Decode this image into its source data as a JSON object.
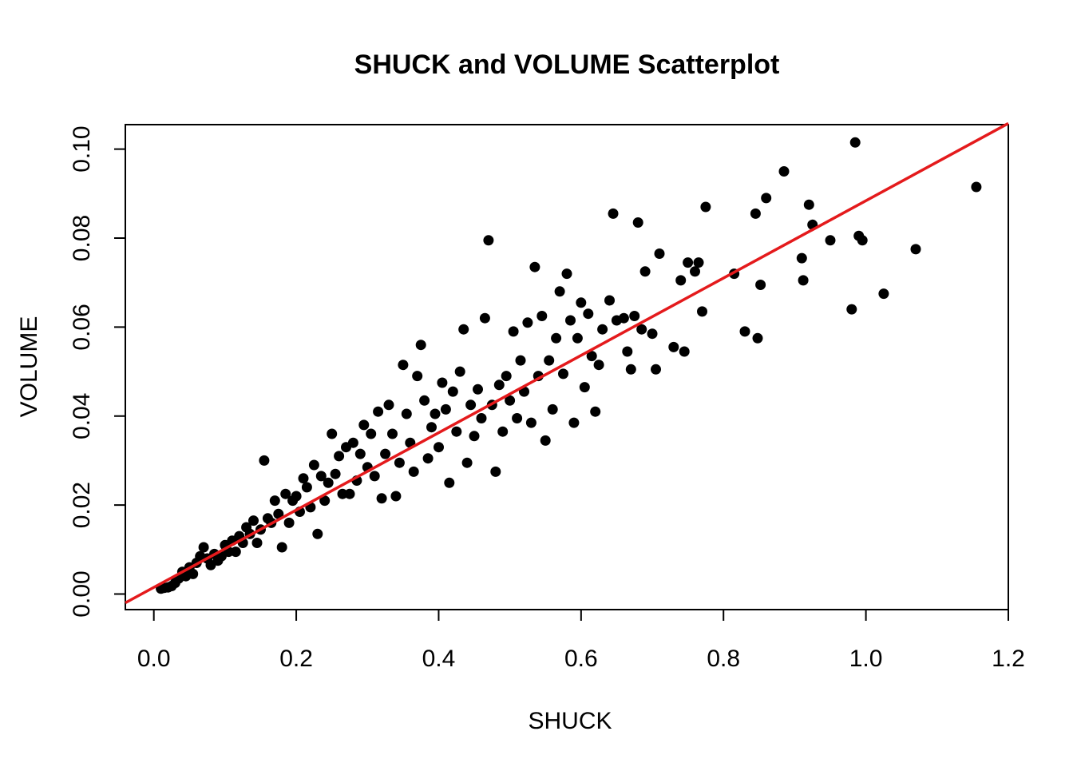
{
  "chart_data": {
    "type": "scatter",
    "title": "SHUCK and VOLUME Scatterplot",
    "xlabel": "SHUCK",
    "ylabel": "VOLUME",
    "xlim": [
      -0.04,
      1.2
    ],
    "ylim": [
      -0.0035,
      0.1055
    ],
    "xticks": [
      0.0,
      0.2,
      0.4,
      0.6,
      0.8,
      1.0,
      1.2
    ],
    "xtick_labels": [
      "0.0",
      "0.2",
      "0.4",
      "0.6",
      "0.8",
      "1.0",
      "1.2"
    ],
    "yticks": [
      0.0,
      0.02,
      0.04,
      0.06,
      0.08,
      0.1
    ],
    "ytick_labels": [
      "0.00",
      "0.02",
      "0.04",
      "0.06",
      "0.08",
      "0.10"
    ],
    "grid": false,
    "point_color": "#000000",
    "fit_line": {
      "intercept": 0.0015,
      "slope": 0.0869,
      "color": "#e41a1c"
    },
    "points": [
      [
        0.01,
        0.0012
      ],
      [
        0.015,
        0.0014
      ],
      [
        0.02,
        0.0015
      ],
      [
        0.025,
        0.0018
      ],
      [
        0.03,
        0.0025
      ],
      [
        0.035,
        0.0035
      ],
      [
        0.04,
        0.005
      ],
      [
        0.045,
        0.004
      ],
      [
        0.05,
        0.006
      ],
      [
        0.055,
        0.0045
      ],
      [
        0.06,
        0.007
      ],
      [
        0.065,
        0.0085
      ],
      [
        0.07,
        0.0105
      ],
      [
        0.075,
        0.008
      ],
      [
        0.08,
        0.0065
      ],
      [
        0.085,
        0.009
      ],
      [
        0.09,
        0.0075
      ],
      [
        0.095,
        0.0085
      ],
      [
        0.1,
        0.011
      ],
      [
        0.105,
        0.0095
      ],
      [
        0.11,
        0.012
      ],
      [
        0.115,
        0.0095
      ],
      [
        0.12,
        0.013
      ],
      [
        0.125,
        0.0115
      ],
      [
        0.13,
        0.015
      ],
      [
        0.135,
        0.0135
      ],
      [
        0.14,
        0.0165
      ],
      [
        0.145,
        0.0115
      ],
      [
        0.15,
        0.0145
      ],
      [
        0.155,
        0.03
      ],
      [
        0.16,
        0.017
      ],
      [
        0.165,
        0.016
      ],
      [
        0.17,
        0.021
      ],
      [
        0.175,
        0.018
      ],
      [
        0.18,
        0.0105
      ],
      [
        0.185,
        0.0225
      ],
      [
        0.19,
        0.016
      ],
      [
        0.195,
        0.021
      ],
      [
        0.2,
        0.022
      ],
      [
        0.205,
        0.0185
      ],
      [
        0.21,
        0.026
      ],
      [
        0.215,
        0.024
      ],
      [
        0.22,
        0.0195
      ],
      [
        0.225,
        0.029
      ],
      [
        0.23,
        0.0135
      ],
      [
        0.235,
        0.0265
      ],
      [
        0.24,
        0.021
      ],
      [
        0.245,
        0.025
      ],
      [
        0.25,
        0.036
      ],
      [
        0.255,
        0.027
      ],
      [
        0.26,
        0.031
      ],
      [
        0.265,
        0.0225
      ],
      [
        0.27,
        0.033
      ],
      [
        0.275,
        0.0225
      ],
      [
        0.28,
        0.034
      ],
      [
        0.285,
        0.0255
      ],
      [
        0.29,
        0.0315
      ],
      [
        0.295,
        0.038
      ],
      [
        0.3,
        0.0285
      ],
      [
        0.305,
        0.036
      ],
      [
        0.31,
        0.0265
      ],
      [
        0.315,
        0.041
      ],
      [
        0.32,
        0.0215
      ],
      [
        0.325,
        0.0315
      ],
      [
        0.33,
        0.0425
      ],
      [
        0.335,
        0.036
      ],
      [
        0.34,
        0.022
      ],
      [
        0.345,
        0.0295
      ],
      [
        0.35,
        0.0515
      ],
      [
        0.355,
        0.0405
      ],
      [
        0.36,
        0.034
      ],
      [
        0.365,
        0.0275
      ],
      [
        0.37,
        0.049
      ],
      [
        0.375,
        0.056
      ],
      [
        0.38,
        0.0435
      ],
      [
        0.385,
        0.0305
      ],
      [
        0.39,
        0.0375
      ],
      [
        0.395,
        0.0405
      ],
      [
        0.4,
        0.033
      ],
      [
        0.405,
        0.0475
      ],
      [
        0.41,
        0.0415
      ],
      [
        0.415,
        0.025
      ],
      [
        0.42,
        0.0455
      ],
      [
        0.425,
        0.0365
      ],
      [
        0.43,
        0.05
      ],
      [
        0.435,
        0.0595
      ],
      [
        0.44,
        0.0295
      ],
      [
        0.445,
        0.0425
      ],
      [
        0.45,
        0.0355
      ],
      [
        0.455,
        0.046
      ],
      [
        0.46,
        0.0395
      ],
      [
        0.465,
        0.062
      ],
      [
        0.47,
        0.0795
      ],
      [
        0.475,
        0.0425
      ],
      [
        0.48,
        0.0275
      ],
      [
        0.485,
        0.047
      ],
      [
        0.49,
        0.0365
      ],
      [
        0.495,
        0.049
      ],
      [
        0.5,
        0.0435
      ],
      [
        0.505,
        0.059
      ],
      [
        0.51,
        0.0395
      ],
      [
        0.515,
        0.0525
      ],
      [
        0.52,
        0.0455
      ],
      [
        0.525,
        0.061
      ],
      [
        0.53,
        0.0385
      ],
      [
        0.535,
        0.0735
      ],
      [
        0.54,
        0.049
      ],
      [
        0.545,
        0.0625
      ],
      [
        0.55,
        0.0345
      ],
      [
        0.555,
        0.0525
      ],
      [
        0.56,
        0.0415
      ],
      [
        0.565,
        0.0575
      ],
      [
        0.57,
        0.068
      ],
      [
        0.575,
        0.0495
      ],
      [
        0.58,
        0.072
      ],
      [
        0.585,
        0.0615
      ],
      [
        0.59,
        0.0385
      ],
      [
        0.595,
        0.0575
      ],
      [
        0.6,
        0.0655
      ],
      [
        0.605,
        0.0465
      ],
      [
        0.61,
        0.063
      ],
      [
        0.615,
        0.0535
      ],
      [
        0.62,
        0.041
      ],
      [
        0.625,
        0.0515
      ],
      [
        0.63,
        0.0595
      ],
      [
        0.64,
        0.066
      ],
      [
        0.645,
        0.0855
      ],
      [
        0.65,
        0.0615
      ],
      [
        0.66,
        0.062
      ],
      [
        0.665,
        0.0545
      ],
      [
        0.67,
        0.0505
      ],
      [
        0.675,
        0.0625
      ],
      [
        0.68,
        0.0835
      ],
      [
        0.685,
        0.0595
      ],
      [
        0.69,
        0.0725
      ],
      [
        0.7,
        0.0585
      ],
      [
        0.705,
        0.0505
      ],
      [
        0.71,
        0.0765
      ],
      [
        0.73,
        0.0555
      ],
      [
        0.74,
        0.0705
      ],
      [
        0.745,
        0.0545
      ],
      [
        0.75,
        0.0745
      ],
      [
        0.76,
        0.0725
      ],
      [
        0.765,
        0.0745
      ],
      [
        0.77,
        0.0635
      ],
      [
        0.775,
        0.087
      ],
      [
        0.815,
        0.072
      ],
      [
        0.83,
        0.059
      ],
      [
        0.845,
        0.0855
      ],
      [
        0.848,
        0.0575
      ],
      [
        0.852,
        0.0695
      ],
      [
        0.86,
        0.089
      ],
      [
        0.885,
        0.095
      ],
      [
        0.91,
        0.0755
      ],
      [
        0.912,
        0.0705
      ],
      [
        0.92,
        0.0875
      ],
      [
        0.925,
        0.083
      ],
      [
        0.95,
        0.0795
      ],
      [
        0.98,
        0.064
      ],
      [
        0.985,
        0.1015
      ],
      [
        0.99,
        0.0805
      ],
      [
        0.995,
        0.0795
      ],
      [
        1.025,
        0.0675
      ],
      [
        1.07,
        0.0775
      ],
      [
        1.155,
        0.0915
      ]
    ]
  }
}
